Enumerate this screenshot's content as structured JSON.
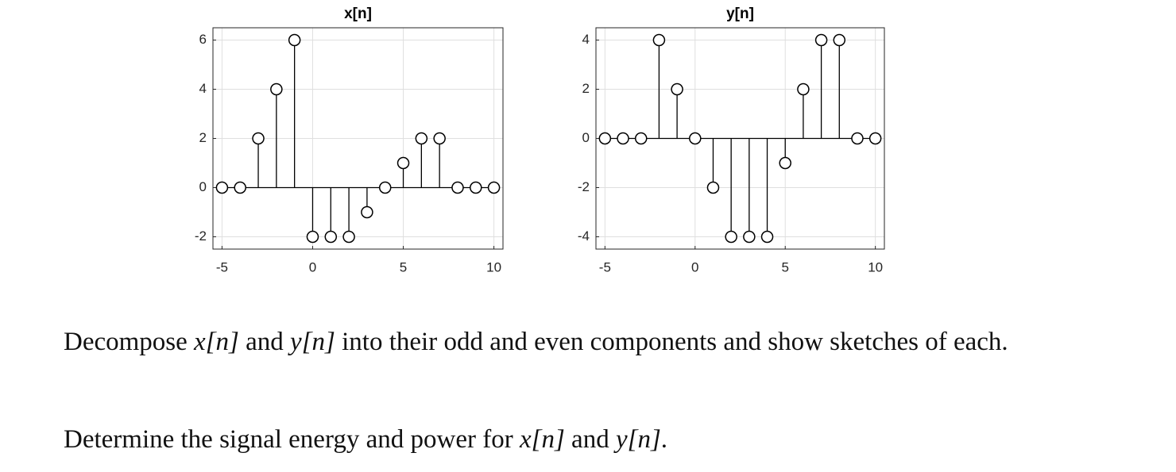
{
  "chart_data": [
    {
      "type": "stem",
      "title": "x[n]",
      "x": [
        -5,
        -4,
        -3,
        -2,
        -1,
        0,
        1,
        2,
        3,
        4,
        5,
        6,
        7,
        8,
        9,
        10
      ],
      "values": [
        0,
        0,
        2,
        4,
        6,
        -2,
        -2,
        -2,
        -1,
        0,
        1,
        2,
        2,
        0,
        0,
        0
      ],
      "xlim": [
        -5.5,
        10.5
      ],
      "ylim": [
        -2.5,
        6.5
      ],
      "xticks": [
        -5,
        0,
        5,
        10
      ],
      "yticks": [
        -2,
        0,
        2,
        4,
        6
      ],
      "grid": true,
      "color": "#000000"
    },
    {
      "type": "stem",
      "title": "y[n]",
      "x": [
        -5,
        -4,
        -3,
        -2,
        -1,
        0,
        1,
        2,
        3,
        4,
        5,
        6,
        7,
        8,
        9,
        10
      ],
      "values": [
        0,
        0,
        0,
        4,
        2,
        0,
        -2,
        -4,
        -4,
        -4,
        -1,
        2,
        4,
        4,
        0,
        0
      ],
      "xlim": [
        -5.5,
        10.5
      ],
      "ylim": [
        -4.5,
        4.5
      ],
      "xticks": [
        -5,
        0,
        5,
        10
      ],
      "yticks": [
        -4,
        -2,
        0,
        2,
        4
      ],
      "grid": true,
      "color": "#000000"
    }
  ],
  "text": {
    "paragraph_1": [
      "Decompose ",
      "x[n]",
      " and ",
      "y[n]",
      " into their odd and even components and show sketches of each."
    ],
    "paragraph_2": [
      "Determine the signal energy and power for ",
      "x[n]",
      " and ",
      "y[n]",
      "."
    ]
  }
}
